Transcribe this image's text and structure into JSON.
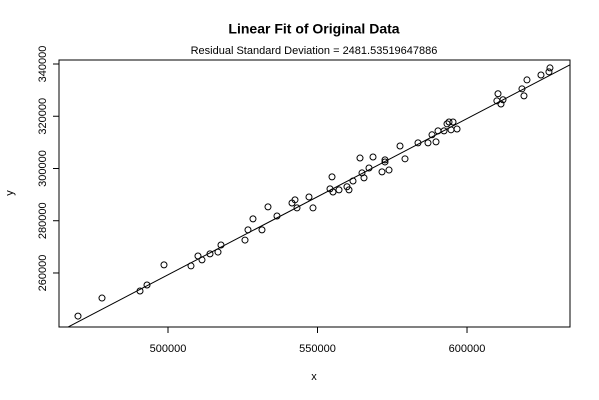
{
  "chart_data": {
    "type": "scatter",
    "title": "Linear Fit of Original Data",
    "subtitle": "Residual Standard Deviation =  2481.53519647886",
    "x_label": "x",
    "y_label": "y",
    "xlim": [
      463550,
      634440
    ],
    "ylim": [
      239320,
      341530
    ],
    "xticks": [
      500000,
      550000,
      600000
    ],
    "yticks": [
      260000,
      280000,
      300000,
      320000,
      340000
    ],
    "color": "#000000",
    "x": [
      469900,
      477930,
      490640,
      492980,
      498660,
      507690,
      510030,
      511370,
      514040,
      516720,
      517720,
      525750,
      526750,
      528420,
      531430,
      533440,
      536450,
      541470,
      542470,
      543140,
      547150,
      548490,
      554180,
      554850,
      555180,
      557190,
      559860,
      560530,
      561870,
      564210,
      564880,
      565550,
      567220,
      568560,
      571570,
      572570,
      572570,
      573910,
      577590,
      579260,
      583610,
      586950,
      588290,
      589630,
      590300,
      592310,
      593310,
      593980,
      594650,
      595320,
      596660,
      609990,
      610360,
      611360,
      612030,
      618380,
      619050,
      620050,
      624730,
      627400,
      627740
    ],
    "y": [
      243500,
      250400,
      253100,
      255400,
      263100,
      262700,
      266500,
      265000,
      267300,
      268000,
      270700,
      272600,
      276500,
      280700,
      276500,
      285300,
      281800,
      286800,
      288000,
      284900,
      289100,
      284900,
      292200,
      296800,
      291000,
      291800,
      293000,
      291800,
      295200,
      304000,
      298300,
      296400,
      300200,
      304400,
      298700,
      302500,
      303300,
      299400,
      308600,
      303700,
      309800,
      309800,
      312900,
      310200,
      314400,
      314400,
      317100,
      317800,
      314800,
      317800,
      315100,
      325900,
      328600,
      324700,
      326300,
      330500,
      327800,
      333900,
      335800,
      337000,
      338500
    ],
    "fit_line": {
      "x": [
        463550,
        634440
      ],
      "y": [
        237500,
        339700
      ]
    }
  }
}
